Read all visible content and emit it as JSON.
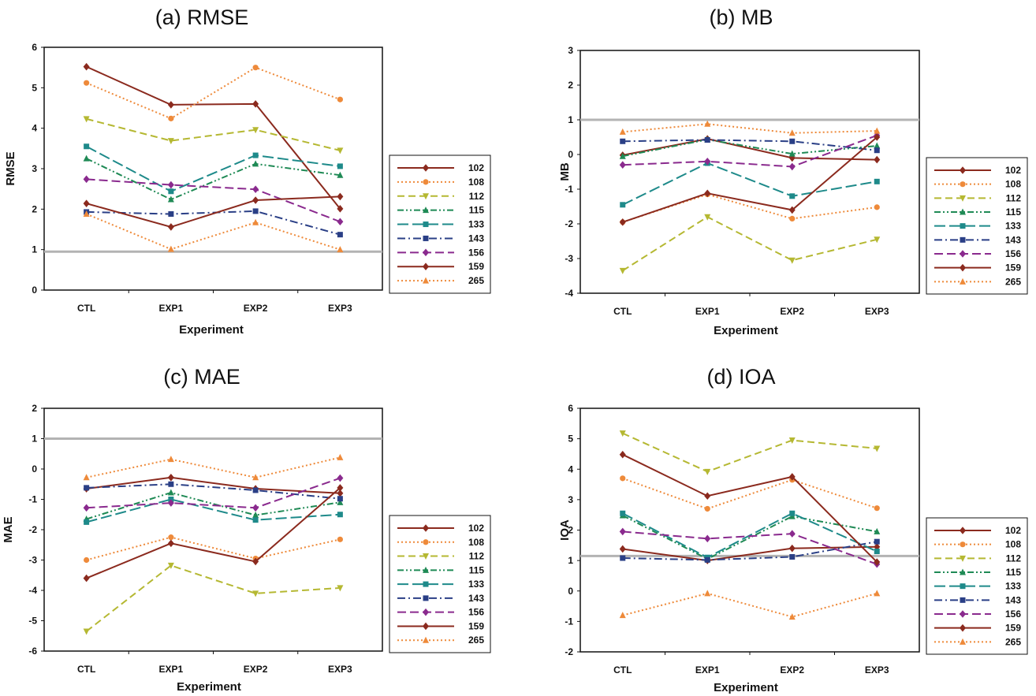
{
  "series_styles": [
    {
      "name": "102",
      "color": "#8B2A1E",
      "dash": "",
      "marker": "diamond"
    },
    {
      "name": "108",
      "color": "#EE8A3A",
      "dash": "2,3",
      "marker": "circle"
    },
    {
      "name": "112",
      "color": "#B5B832",
      "dash": "9,5",
      "marker": "triangle-down"
    },
    {
      "name": "115",
      "color": "#1F8A55",
      "dash": "8,3,2,3,2,3",
      "marker": "triangle-up"
    },
    {
      "name": "133",
      "color": "#1E8A8A",
      "dash": "14,5",
      "marker": "square"
    },
    {
      "name": "143",
      "color": "#2A3F86",
      "dash": "10,4,2,4",
      "marker": "square"
    },
    {
      "name": "156",
      "color": "#8A2A8E",
      "dash": "11,5",
      "marker": "diamond"
    },
    {
      "name": "159",
      "color": "#8B2A1E",
      "dash": "",
      "marker": "diamond"
    },
    {
      "name": "265",
      "color": "#EE8A3A",
      "dash": "2,3",
      "marker": "triangle-up"
    }
  ],
  "chart_data": [
    {
      "type": "line",
      "title": "(a) RMSE",
      "xlabel": "Experiment",
      "ylabel": "RMSE",
      "categories": [
        "CTL",
        "EXP1",
        "EXP2",
        "EXP3"
      ],
      "ylim": [
        0,
        6
      ],
      "yticks": [
        "0",
        "1",
        "2",
        "3",
        "4",
        "5",
        "6"
      ],
      "reference_line": 0.95,
      "series": [
        {
          "name": "102",
          "values": [
            5.52,
            4.58,
            4.6,
            2.01
          ]
        },
        {
          "name": "108",
          "values": [
            5.12,
            4.24,
            5.5,
            4.71
          ]
        },
        {
          "name": "112",
          "values": [
            4.23,
            3.69,
            3.96,
            3.45
          ]
        },
        {
          "name": "115",
          "values": [
            3.25,
            2.24,
            3.12,
            2.84
          ]
        },
        {
          "name": "133",
          "values": [
            3.55,
            2.44,
            3.33,
            3.06
          ]
        },
        {
          "name": "143",
          "values": [
            1.93,
            1.88,
            1.95,
            1.37
          ]
        },
        {
          "name": "156",
          "values": [
            2.74,
            2.6,
            2.49,
            1.69
          ]
        },
        {
          "name": "159",
          "values": [
            2.14,
            1.56,
            2.22,
            2.31
          ]
        },
        {
          "name": "265",
          "values": [
            1.88,
            1.01,
            1.67,
            1.0
          ]
        }
      ]
    },
    {
      "type": "line",
      "title": "(b) MB",
      "xlabel": "Experiment",
      "ylabel": "MB",
      "categories": [
        "CTL",
        "EXP1",
        "EXP2",
        "EXP3"
      ],
      "ylim": [
        -4,
        3
      ],
      "yticks": [
        "-4",
        "-3",
        "-2",
        "-1",
        "0",
        "1",
        "2",
        "3"
      ],
      "reference_line": 1.0,
      "series": [
        {
          "name": "102",
          "values": [
            -0.02,
            0.45,
            -0.1,
            -0.15
          ]
        },
        {
          "name": "108",
          "values": [
            -1.95,
            -1.15,
            -1.85,
            -1.52
          ]
        },
        {
          "name": "112",
          "values": [
            -3.35,
            -1.8,
            -3.05,
            -2.45
          ]
        },
        {
          "name": "115",
          "values": [
            -0.05,
            0.43,
            0.02,
            0.25
          ]
        },
        {
          "name": "133",
          "values": [
            -1.45,
            -0.25,
            -1.2,
            -0.78
          ]
        },
        {
          "name": "143",
          "values": [
            0.38,
            0.42,
            0.38,
            0.12
          ]
        },
        {
          "name": "156",
          "values": [
            -0.3,
            -0.2,
            -0.35,
            0.55
          ]
        },
        {
          "name": "159",
          "values": [
            -1.95,
            -1.12,
            -1.6,
            0.5
          ]
        },
        {
          "name": "265",
          "values": [
            0.65,
            0.88,
            0.62,
            0.68
          ]
        }
      ]
    },
    {
      "type": "line",
      "title": "(c) MAE",
      "xlabel": "Experiment",
      "ylabel": "MAE",
      "categories": [
        "CTL",
        "EXP1",
        "EXP2",
        "EXP3"
      ],
      "ylim": [
        -6,
        2
      ],
      "yticks": [
        "-6",
        "-5",
        "-4",
        "-3",
        "-2",
        "-1",
        "0",
        "1",
        "2"
      ],
      "reference_line": 1.0,
      "series": [
        {
          "name": "102",
          "values": [
            -0.65,
            -0.28,
            -0.65,
            -0.8
          ]
        },
        {
          "name": "108",
          "values": [
            -3.0,
            -2.25,
            -2.95,
            -2.32
          ]
        },
        {
          "name": "112",
          "values": [
            -5.35,
            -3.18,
            -4.1,
            -3.92
          ]
        },
        {
          "name": "115",
          "values": [
            -1.65,
            -0.78,
            -1.52,
            -1.1
          ]
        },
        {
          "name": "133",
          "values": [
            -1.75,
            -1.0,
            -1.68,
            -1.5
          ]
        },
        {
          "name": "143",
          "values": [
            -0.62,
            -0.5,
            -0.7,
            -0.98
          ]
        },
        {
          "name": "156",
          "values": [
            -1.28,
            -1.12,
            -1.28,
            -0.3
          ]
        },
        {
          "name": "159",
          "values": [
            -3.6,
            -2.45,
            -3.05,
            -0.62
          ]
        },
        {
          "name": "265",
          "values": [
            -0.28,
            0.32,
            -0.28,
            0.38
          ]
        }
      ]
    },
    {
      "type": "line",
      "title": "(d) IOA",
      "xlabel": "Experiment",
      "ylabel": "IOA",
      "categories": [
        "CTL",
        "EXP1",
        "EXP2",
        "EXP3"
      ],
      "ylim": [
        -2,
        6
      ],
      "yticks": [
        "-2",
        "-1",
        "0",
        "1",
        "2",
        "3",
        "4",
        "5",
        "6"
      ],
      "reference_line": 1.15,
      "series": [
        {
          "name": "102",
          "values": [
            1.38,
            1.0,
            1.4,
            1.45
          ]
        },
        {
          "name": "108",
          "values": [
            3.7,
            2.7,
            3.65,
            2.72
          ]
        },
        {
          "name": "112",
          "values": [
            5.18,
            3.92,
            4.95,
            4.68
          ]
        },
        {
          "name": "115",
          "values": [
            2.48,
            1.05,
            2.45,
            1.95
          ]
        },
        {
          "name": "133",
          "values": [
            2.55,
            1.1,
            2.55,
            1.3
          ]
        },
        {
          "name": "143",
          "values": [
            1.08,
            1.02,
            1.12,
            1.62
          ]
        },
        {
          "name": "156",
          "values": [
            1.95,
            1.72,
            1.88,
            0.88
          ]
        },
        {
          "name": "159",
          "values": [
            4.48,
            3.12,
            3.75,
            0.95
          ]
        },
        {
          "name": "265",
          "values": [
            -0.8,
            -0.08,
            -0.85,
            -0.08
          ]
        }
      ]
    }
  ]
}
